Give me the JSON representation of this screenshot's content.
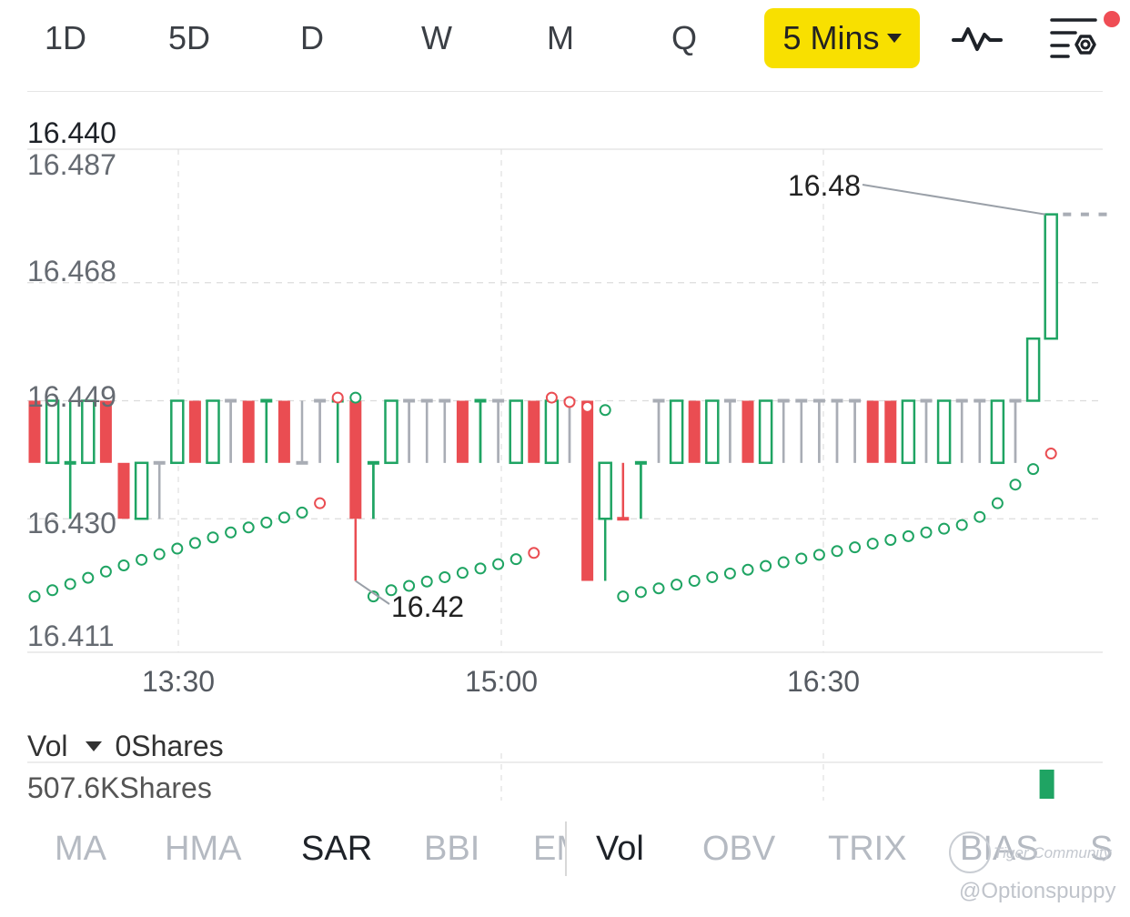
{
  "periods": [
    "1D",
    "5D",
    "D",
    "W",
    "M",
    "Q"
  ],
  "interval": {
    "label": "5 Mins",
    "caret_icon": "caret-down-icon"
  },
  "icons": {
    "indicator": "waveform-icon",
    "settings": "list-settings-icon"
  },
  "colors": {
    "up": "#1fa463",
    "down": "#ea4d52",
    "flat": "#a9adb5",
    "accent": "#f8e000"
  },
  "chart_data": {
    "type": "candlestick",
    "price_label_top": "16.440",
    "y_ticks": [
      "16.487",
      "16.468",
      "16.449",
      "16.430",
      "16.411"
    ],
    "ylim": [
      16.411,
      16.487
    ],
    "x_ticks": [
      "13:30",
      "15:00",
      "16:30"
    ],
    "grid": true,
    "annotations": {
      "high": "16.48",
      "low": "16.42"
    },
    "candles": [
      {
        "o": 16.449,
        "h": 16.449,
        "l": 16.439,
        "c": 16.439,
        "d": "down"
      },
      {
        "o": 16.439,
        "h": 16.449,
        "l": 16.439,
        "c": 16.449,
        "d": "up"
      },
      {
        "o": 16.439,
        "h": 16.449,
        "l": 16.43,
        "c": 16.439,
        "d": "up"
      },
      {
        "o": 16.439,
        "h": 16.449,
        "l": 16.439,
        "c": 16.449,
        "d": "up"
      },
      {
        "o": 16.449,
        "h": 16.449,
        "l": 16.439,
        "c": 16.439,
        "d": "down"
      },
      {
        "o": 16.439,
        "h": 16.439,
        "l": 16.43,
        "c": 16.43,
        "d": "down"
      },
      {
        "o": 16.43,
        "h": 16.439,
        "l": 16.43,
        "c": 16.439,
        "d": "up"
      },
      {
        "o": 16.439,
        "h": 16.439,
        "l": 16.43,
        "c": 16.439,
        "d": "flat"
      },
      {
        "o": 16.439,
        "h": 16.449,
        "l": 16.439,
        "c": 16.449,
        "d": "up"
      },
      {
        "o": 16.449,
        "h": 16.449,
        "l": 16.439,
        "c": 16.439,
        "d": "down"
      },
      {
        "o": 16.439,
        "h": 16.449,
        "l": 16.439,
        "c": 16.449,
        "d": "up"
      },
      {
        "o": 16.449,
        "h": 16.449,
        "l": 16.439,
        "c": 16.449,
        "d": "flat"
      },
      {
        "o": 16.449,
        "h": 16.449,
        "l": 16.439,
        "c": 16.439,
        "d": "down"
      },
      {
        "o": 16.449,
        "h": 16.449,
        "l": 16.439,
        "c": 16.449,
        "d": "up"
      },
      {
        "o": 16.449,
        "h": 16.449,
        "l": 16.439,
        "c": 16.439,
        "d": "down"
      },
      {
        "o": 16.439,
        "h": 16.449,
        "l": 16.439,
        "c": 16.439,
        "d": "flat"
      },
      {
        "o": 16.449,
        "h": 16.449,
        "l": 16.439,
        "c": 16.449,
        "d": "flat"
      },
      {
        "o": 16.449,
        "h": 16.449,
        "l": 16.439,
        "c": 16.449,
        "d": "up"
      },
      {
        "o": 16.449,
        "h": 16.449,
        "l": 16.42,
        "c": 16.43,
        "d": "down"
      },
      {
        "o": 16.439,
        "h": 16.439,
        "l": 16.43,
        "c": 16.439,
        "d": "up"
      },
      {
        "o": 16.439,
        "h": 16.449,
        "l": 16.439,
        "c": 16.449,
        "d": "up"
      },
      {
        "o": 16.449,
        "h": 16.449,
        "l": 16.439,
        "c": 16.449,
        "d": "flat"
      },
      {
        "o": 16.449,
        "h": 16.449,
        "l": 16.439,
        "c": 16.449,
        "d": "flat"
      },
      {
        "o": 16.449,
        "h": 16.449,
        "l": 16.439,
        "c": 16.449,
        "d": "flat"
      },
      {
        "o": 16.449,
        "h": 16.449,
        "l": 16.439,
        "c": 16.439,
        "d": "down"
      },
      {
        "o": 16.449,
        "h": 16.449,
        "l": 16.439,
        "c": 16.449,
        "d": "up"
      },
      {
        "o": 16.449,
        "h": 16.449,
        "l": 16.439,
        "c": 16.449,
        "d": "flat"
      },
      {
        "o": 16.439,
        "h": 16.449,
        "l": 16.439,
        "c": 16.449,
        "d": "up"
      },
      {
        "o": 16.449,
        "h": 16.449,
        "l": 16.439,
        "c": 16.439,
        "d": "down"
      },
      {
        "o": 16.439,
        "h": 16.449,
        "l": 16.439,
        "c": 16.449,
        "d": "up"
      },
      {
        "o": 16.449,
        "h": 16.449,
        "l": 16.439,
        "c": 16.449,
        "d": "flat"
      },
      {
        "o": 16.449,
        "h": 16.449,
        "l": 16.42,
        "c": 16.42,
        "d": "down"
      },
      {
        "o": 16.43,
        "h": 16.439,
        "l": 16.42,
        "c": 16.439,
        "d": "up"
      },
      {
        "o": 16.43,
        "h": 16.439,
        "l": 16.43,
        "c": 16.43,
        "d": "down"
      },
      {
        "o": 16.439,
        "h": 16.439,
        "l": 16.43,
        "c": 16.439,
        "d": "up"
      },
      {
        "o": 16.449,
        "h": 16.449,
        "l": 16.439,
        "c": 16.449,
        "d": "flat"
      },
      {
        "o": 16.439,
        "h": 16.449,
        "l": 16.439,
        "c": 16.449,
        "d": "up"
      },
      {
        "o": 16.449,
        "h": 16.449,
        "l": 16.439,
        "c": 16.439,
        "d": "down"
      },
      {
        "o": 16.439,
        "h": 16.449,
        "l": 16.439,
        "c": 16.449,
        "d": "up"
      },
      {
        "o": 16.449,
        "h": 16.449,
        "l": 16.439,
        "c": 16.449,
        "d": "flat"
      },
      {
        "o": 16.449,
        "h": 16.449,
        "l": 16.439,
        "c": 16.439,
        "d": "down"
      },
      {
        "o": 16.439,
        "h": 16.449,
        "l": 16.439,
        "c": 16.449,
        "d": "up"
      },
      {
        "o": 16.449,
        "h": 16.449,
        "l": 16.439,
        "c": 16.449,
        "d": "flat"
      },
      {
        "o": 16.449,
        "h": 16.449,
        "l": 16.439,
        "c": 16.449,
        "d": "flat"
      },
      {
        "o": 16.449,
        "h": 16.449,
        "l": 16.439,
        "c": 16.449,
        "d": "flat"
      },
      {
        "o": 16.449,
        "h": 16.449,
        "l": 16.439,
        "c": 16.449,
        "d": "flat"
      },
      {
        "o": 16.449,
        "h": 16.449,
        "l": 16.439,
        "c": 16.449,
        "d": "flat"
      },
      {
        "o": 16.449,
        "h": 16.449,
        "l": 16.439,
        "c": 16.439,
        "d": "down"
      },
      {
        "o": 16.449,
        "h": 16.449,
        "l": 16.439,
        "c": 16.439,
        "d": "down"
      },
      {
        "o": 16.439,
        "h": 16.449,
        "l": 16.439,
        "c": 16.449,
        "d": "up"
      },
      {
        "o": 16.449,
        "h": 16.449,
        "l": 16.439,
        "c": 16.449,
        "d": "flat"
      },
      {
        "o": 16.439,
        "h": 16.449,
        "l": 16.439,
        "c": 16.449,
        "d": "up"
      },
      {
        "o": 16.449,
        "h": 16.449,
        "l": 16.439,
        "c": 16.449,
        "d": "flat"
      },
      {
        "o": 16.449,
        "h": 16.449,
        "l": 16.439,
        "c": 16.449,
        "d": "flat"
      },
      {
        "o": 16.439,
        "h": 16.449,
        "l": 16.439,
        "c": 16.449,
        "d": "up"
      },
      {
        "o": 16.449,
        "h": 16.449,
        "l": 16.439,
        "c": 16.449,
        "d": "flat"
      },
      {
        "o": 16.449,
        "h": 16.459,
        "l": 16.449,
        "c": 16.459,
        "d": "up"
      },
      {
        "o": 16.459,
        "h": 16.479,
        "l": 16.459,
        "c": 16.479,
        "d": "up"
      },
      {
        "o": 16.479,
        "h": 16.479,
        "l": 16.479,
        "c": 16.479,
        "d": "flat"
      },
      {
        "o": 16.479,
        "h": 16.479,
        "l": 16.479,
        "c": 16.479,
        "d": "flat"
      },
      {
        "o": 16.479,
        "h": 16.479,
        "l": 16.479,
        "c": 16.479,
        "d": "flat"
      }
    ],
    "sar_series": [
      {
        "start": 0,
        "dir": "up",
        "values": [
          16.4175,
          16.4185,
          16.4195,
          16.4205,
          16.4215,
          16.4225,
          16.4234,
          16.4243,
          16.4252,
          16.4261,
          16.427,
          16.4278,
          16.4286,
          16.4294,
          16.4302,
          16.431
        ]
      },
      {
        "start": 16,
        "dir": "down",
        "values": [
          16.4325
        ]
      },
      {
        "start": 17,
        "dir": "down",
        "values": [
          16.4495
        ]
      },
      {
        "start": 18,
        "dir": "up",
        "values": [
          16.4495
        ]
      },
      {
        "start": 19,
        "dir": "up",
        "values": [
          16.4175,
          16.4185,
          16.4192,
          16.4199,
          16.4206,
          16.4213,
          16.422,
          16.4227,
          16.4235
        ]
      },
      {
        "start": 28,
        "dir": "down",
        "values": [
          16.4245
        ]
      },
      {
        "start": 29,
        "dir": "down",
        "values": [
          16.4495,
          16.4488,
          16.448
        ]
      },
      {
        "start": 32,
        "dir": "up",
        "values": [
          16.4475
        ]
      },
      {
        "start": 33,
        "dir": "up",
        "values": [
          16.4175,
          16.4182,
          16.4188,
          16.4194,
          16.42,
          16.4206,
          16.4212,
          16.4218,
          16.4224,
          16.423,
          16.4236,
          16.4242,
          16.4248,
          16.4254,
          16.426,
          16.4266,
          16.4272,
          16.4278,
          16.4284,
          16.429,
          16.4303,
          16.4325,
          16.4355,
          16.438
        ]
      },
      {
        "start": 57,
        "dir": "down",
        "values": [
          16.4405
        ]
      }
    ],
    "volume": {
      "label": "Vol",
      "current": "0Shares",
      "max": "507.6KShares",
      "bars": [
        {
          "index": 56,
          "value": 0.35
        }
      ]
    }
  },
  "tabs_left": [
    "MA",
    "HMA",
    "SAR",
    "BBI",
    "EMA"
  ],
  "tabs_right": [
    "Vol",
    "OBV",
    "TRIX",
    "BIAS",
    "S"
  ],
  "active_tabs": [
    "SAR",
    "Vol"
  ],
  "watermark": {
    "brand": "Tiger Community",
    "user": "@Optionspuppy"
  }
}
